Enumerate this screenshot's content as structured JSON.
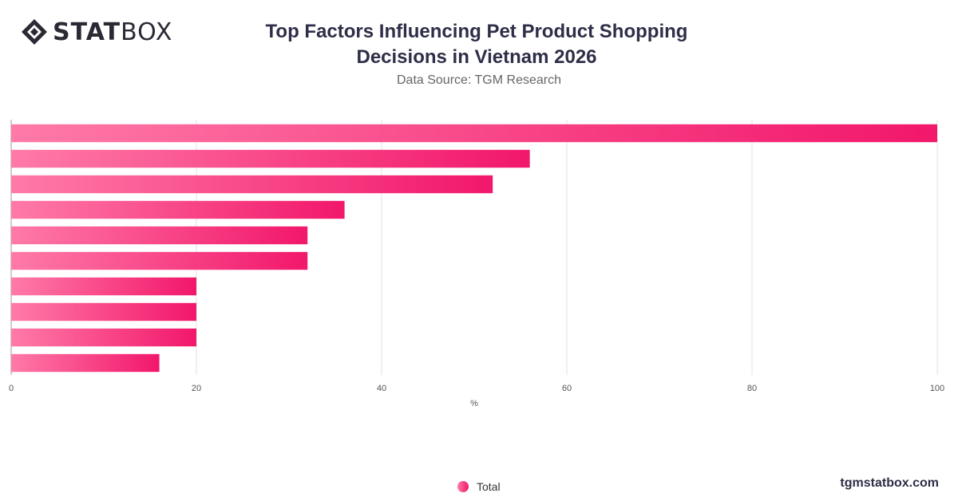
{
  "logo": {
    "bold": "STAT",
    "light": "BOX"
  },
  "title": "Top Factors Influencing Pet Product Shopping Decisions in Vietnam 2026",
  "subtitle": "Data Source: TGM Research",
  "brand": "tgmstatbox.com",
  "colors": {
    "bar_start": "#ff7aa8",
    "bar_end": "#f2176b",
    "grid": "#e0e0e0",
    "text": "#333333"
  },
  "chart_data": {
    "type": "bar",
    "orientation": "horizontal",
    "categories": [
      "",
      "",
      "",
      "",
      "",
      "",
      "",
      "",
      "",
      ""
    ],
    "series": [
      {
        "name": "Total",
        "values": [
          100,
          56,
          52,
          36,
          32,
          32,
          20,
          20,
          20,
          16
        ]
      }
    ],
    "xlabel": "%",
    "ylabel": "",
    "xlim": [
      0,
      100
    ],
    "xticks": [
      "0",
      "20",
      "40",
      "60",
      "80",
      "100"
    ],
    "grid": true,
    "legend_position": "bottom"
  }
}
